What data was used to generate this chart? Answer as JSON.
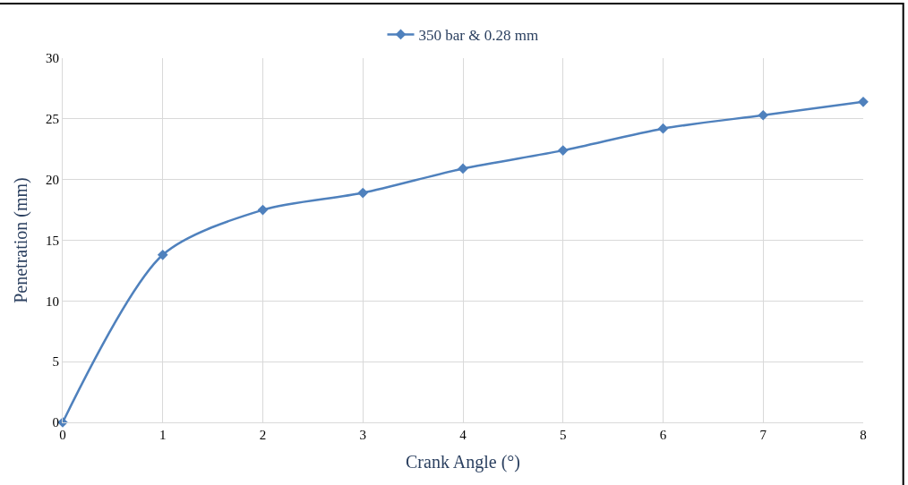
{
  "chart_data": {
    "type": "line",
    "xlabel": "Crank Angle (°)",
    "ylabel": "Penetration (mm)",
    "x": [
      0,
      1,
      2,
      3,
      4,
      5,
      6,
      7,
      8
    ],
    "series": [
      {
        "name": "350 bar & 0.28 mm",
        "color": "#4f81bd",
        "values": [
          0,
          13.8,
          17.5,
          18.9,
          20.9,
          22.4,
          24.2,
          25.3,
          26.4
        ]
      }
    ],
    "xlim": [
      0,
      8
    ],
    "xticks": [
      0,
      1,
      2,
      3,
      4,
      5,
      6,
      7,
      8
    ],
    "ylim": [
      0,
      30
    ],
    "yticks": [
      0,
      5,
      10,
      15,
      20,
      25,
      30
    ],
    "grid": true,
    "legend": "top",
    "marker": "diamond",
    "line_style": "solid"
  }
}
